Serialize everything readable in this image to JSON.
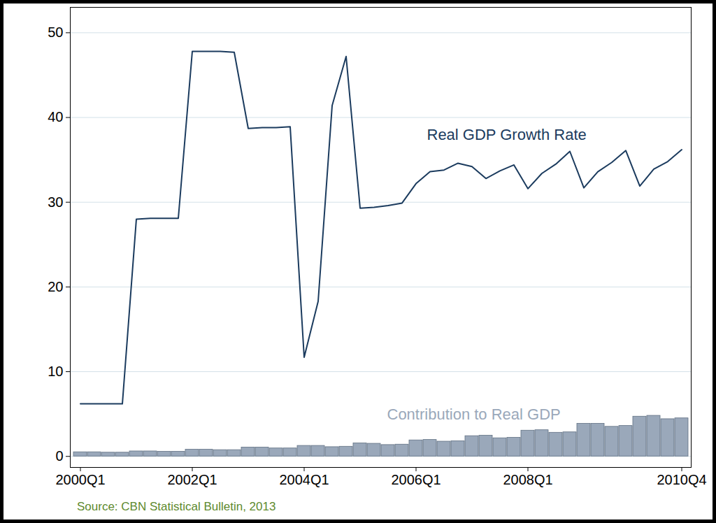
{
  "chart_data": {
    "type": "line",
    "caption": "Source: CBN Statistical Bulletin, 2013",
    "categories": [
      "2000Q1",
      null,
      null,
      null,
      null,
      null,
      null,
      null,
      "2002Q1",
      null,
      null,
      null,
      null,
      null,
      null,
      null,
      "2004Q1",
      null,
      null,
      null,
      null,
      null,
      null,
      null,
      "2006Q1",
      null,
      null,
      null,
      null,
      null,
      null,
      null,
      "2008Q1",
      null,
      null,
      null,
      null,
      null,
      null,
      null,
      null,
      null,
      null,
      "2010Q4"
    ],
    "series": [
      {
        "name": "Real GDP Growth Rate",
        "type": "line",
        "color": "#1b3b5e",
        "values": [
          6.2,
          6.2,
          6.2,
          6.2,
          28.0,
          28.1,
          28.1,
          28.1,
          47.8,
          47.8,
          47.8,
          47.7,
          38.7,
          38.8,
          38.8,
          38.9,
          11.7,
          18.3,
          41.4,
          47.2,
          29.3,
          29.4,
          29.6,
          29.9,
          32.2,
          33.6,
          33.8,
          34.6,
          34.2,
          32.8,
          33.7,
          34.4,
          31.6,
          33.4,
          34.5,
          36.0,
          31.7,
          33.6,
          34.7,
          36.1,
          31.9,
          33.9,
          34.8,
          36.2
        ]
      },
      {
        "name": "Contribution to Real GDP",
        "type": "bar",
        "color": "#9aa8ba",
        "values": [
          0.5,
          0.5,
          0.45,
          0.45,
          0.6,
          0.6,
          0.55,
          0.55,
          0.8,
          0.8,
          0.75,
          0.75,
          1.05,
          1.05,
          0.95,
          0.95,
          1.25,
          1.25,
          1.1,
          1.15,
          1.55,
          1.5,
          1.35,
          1.4,
          1.9,
          1.95,
          1.75,
          1.8,
          2.4,
          2.45,
          2.15,
          2.2,
          3.05,
          3.1,
          2.8,
          2.85,
          3.85,
          3.85,
          3.5,
          3.6,
          4.7,
          4.8,
          4.4,
          4.5
        ]
      }
    ],
    "ylim": [
      -1.3,
      53
    ],
    "yticks": [
      0,
      10,
      20,
      30,
      40,
      50
    ],
    "grid": true
  }
}
